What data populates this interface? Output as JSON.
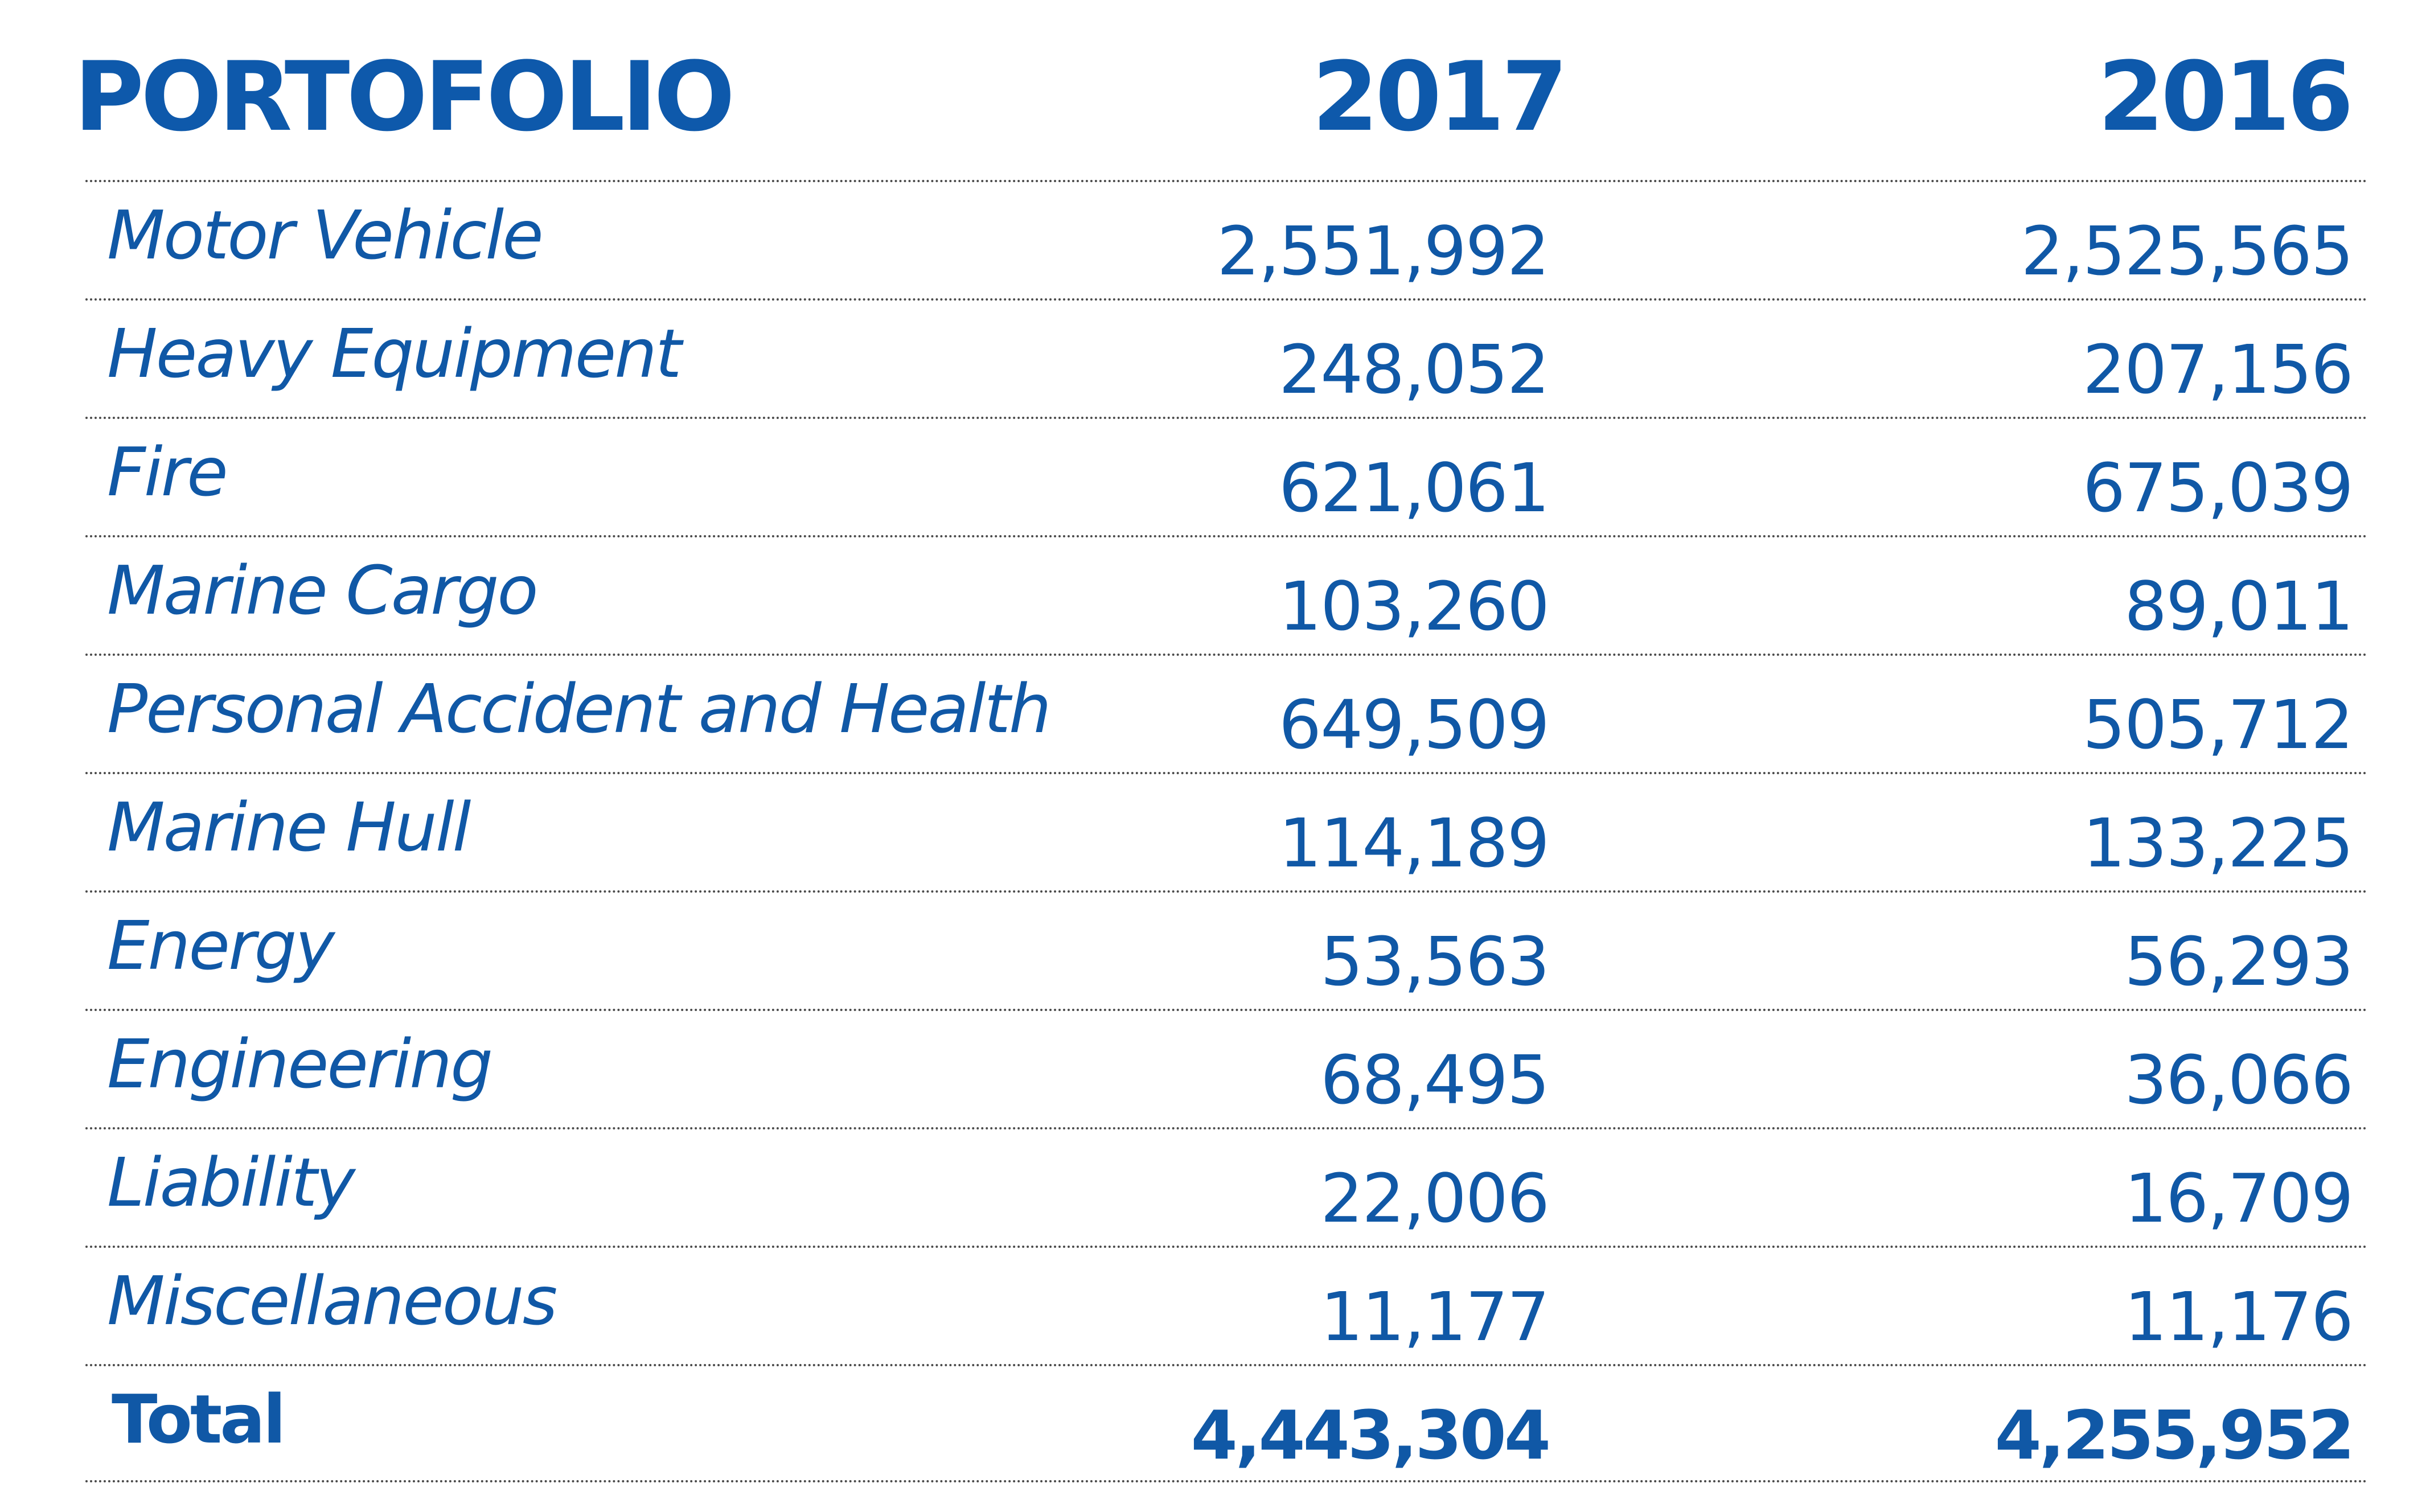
{
  "table": {
    "header": {
      "label": "PORTOFOLIO",
      "year_2017": "2017",
      "year_2016": "2016"
    },
    "rows": [
      {
        "label": "Motor Vehicle",
        "v2017": "2,551,992",
        "v2016": "2,525,565"
      },
      {
        "label": "Heavy Equipment",
        "v2017": "248,052",
        "v2016": "207,156"
      },
      {
        "label": "Fire",
        "v2017": "621,061",
        "v2016": "675,039"
      },
      {
        "label": "Marine Cargo",
        "v2017": "103,260",
        "v2016": "89,011"
      },
      {
        "label": "Personal Accident and Health",
        "v2017": "649,509",
        "v2016": "505,712"
      },
      {
        "label": "Marine Hull",
        "v2017": "114,189",
        "v2016": "133,225"
      },
      {
        "label": "Energy",
        "v2017": "53,563",
        "v2016": "56,293"
      },
      {
        "label": "Engineering",
        "v2017": "68,495",
        "v2016": "36,066"
      },
      {
        "label": "Liability",
        "v2017": "22,006",
        "v2016": "16,709"
      },
      {
        "label": "Miscellaneous",
        "v2017": "11,177",
        "v2016": "11,176"
      }
    ],
    "total": {
      "label": "Total",
      "v2017": "4,443,304",
      "v2016": "4,255,952"
    }
  },
  "colors": {
    "text": "#1058a6",
    "header": "#0e59ab",
    "rule": "#4a4a4a"
  }
}
